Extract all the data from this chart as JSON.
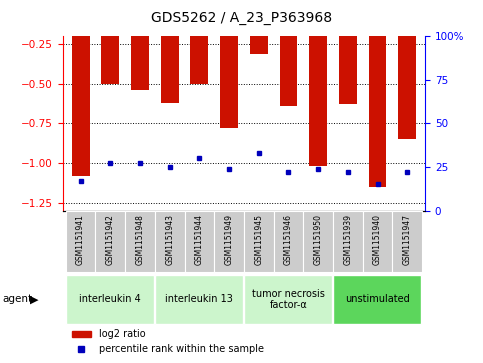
{
  "title": "GDS5262 / A_23_P363968",
  "samples": [
    "GSM1151941",
    "GSM1151942",
    "GSM1151948",
    "GSM1151943",
    "GSM1151944",
    "GSM1151949",
    "GSM1151945",
    "GSM1151946",
    "GSM1151950",
    "GSM1151939",
    "GSM1151940",
    "GSM1151947"
  ],
  "log2_values": [
    -1.08,
    -0.5,
    -0.54,
    -0.62,
    -0.5,
    -0.78,
    -0.31,
    -0.64,
    -1.02,
    -0.63,
    -1.15,
    -0.85
  ],
  "percentile_ranks": [
    17,
    27,
    27,
    25,
    30,
    24,
    33,
    22,
    24,
    22,
    15,
    22
  ],
  "groups": [
    {
      "label": "interleukin 4",
      "start": 0,
      "end": 3
    },
    {
      "label": "interleukin 13",
      "start": 3,
      "end": 6
    },
    {
      "label": "tumor necrosis\nfactor-α",
      "start": 6,
      "end": 9
    },
    {
      "label": "unstimulated",
      "start": 9,
      "end": 12
    }
  ],
  "ylim_left": [
    -1.3,
    -0.2
  ],
  "ylim_right": [
    0,
    100
  ],
  "yticks_left": [
    -1.25,
    -1.0,
    -0.75,
    -0.5,
    -0.25
  ],
  "yticks_right": [
    0,
    25,
    50,
    75,
    100
  ],
  "bar_color": "#cc1100",
  "dot_color": "#0000bb",
  "bg_plot": "#ffffff",
  "legend_items": [
    "log2 ratio",
    "percentile rank within the sample"
  ],
  "title_fontsize": 10,
  "tick_fontsize": 7.5,
  "bar_width": 0.6
}
